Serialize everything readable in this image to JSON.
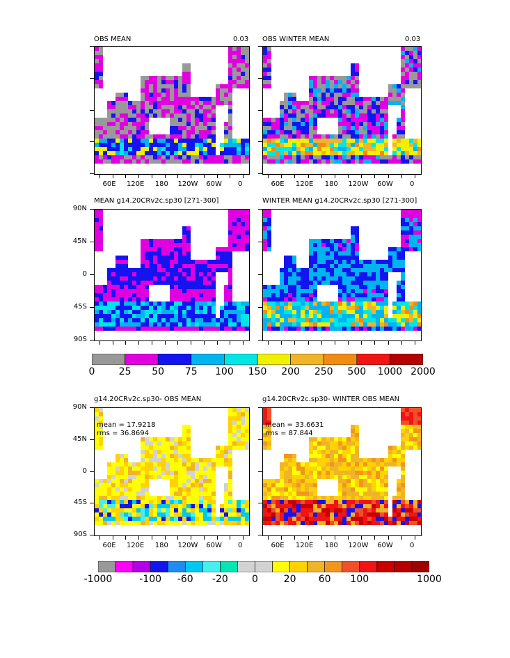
{
  "panels": [
    {
      "id": "obs-mean",
      "title": "OBS MEAN",
      "value": "0.03",
      "stats": null,
      "yticks_labeled": false
    },
    {
      "id": "obs-winter-mean",
      "title": "OBS WINTER MEAN",
      "value": "0.03",
      "stats": null,
      "yticks_labeled": false
    },
    {
      "id": "model-mean",
      "title": "MEAN g14.20CRv2c.sp30  [271-300]",
      "value": "",
      "stats": null,
      "yticks_labeled": true
    },
    {
      "id": "model-winter-mean",
      "title": "WINTER MEAN g14.20CRv2c.sp30  [271-300]",
      "value": "",
      "stats": null,
      "yticks_labeled": false
    },
    {
      "id": "diff-mean",
      "title": "g14.20CRv2c.sp30- OBS MEAN",
      "value": "",
      "stats": {
        "mean": "mean = 17.9218",
        "rms": "rms = 36.8694"
      },
      "yticks_labeled": true
    },
    {
      "id": "diff-winter-mean",
      "title": "g14.20CRv2c.sp30- WINTER OBS MEAN",
      "value": "",
      "stats": {
        "mean": "mean = 33.6631",
        "rms": "rms = 87.844"
      },
      "yticks_labeled": false
    }
  ],
  "axes": {
    "ylabels": [
      "90N",
      "45N",
      "0",
      "45S",
      "90S"
    ],
    "xlabels": [
      "60E",
      "120E",
      "180",
      "120W",
      "60W",
      "0"
    ]
  },
  "colorbar_top": {
    "labels": [
      "0",
      "25",
      "50",
      "75",
      "100",
      "150",
      "200",
      "250",
      "500",
      "1000",
      "2000"
    ],
    "colors": [
      "#999999",
      "#e000e0",
      "#1414f0",
      "#00b4f0",
      "#00e6e6",
      "#f0f000",
      "#f0b428",
      "#f08c14",
      "#f01414",
      "#b40000"
    ]
  },
  "colorbar_bottom": {
    "labels": [
      "-1000",
      "-100",
      "-60",
      "-20",
      "0",
      "20",
      "60",
      "100",
      "1000"
    ],
    "colors": [
      "#999999",
      "#ff00ff",
      "#b400e6",
      "#1414f0",
      "#1e8cf0",
      "#00c8f0",
      "#46f0f0",
      "#00e6b4",
      "#d2d2d2",
      "#d2d2d2",
      "#ffff00",
      "#ffd200",
      "#f0b428",
      "#f0961e",
      "#f05028",
      "#f01414",
      "#c80000",
      "#b40000",
      "#a00000"
    ]
  },
  "chart_data": [
    {
      "type": "heatmap",
      "title": "OBS MEAN",
      "annotation": "0.03",
      "x_ticks": [
        "60E",
        "120E",
        "180",
        "120W",
        "60W",
        "0"
      ],
      "y_ticks": [],
      "legend": "top colorbar, values 0–2000",
      "dominant_range": "25–75 (magenta/blue), higher (blue/cyan/yellow) in Southern Ocean band near 45S–60S"
    },
    {
      "type": "heatmap",
      "title": "OBS WINTER MEAN",
      "annotation": "0.03",
      "x_ticks": [
        "60E",
        "120E",
        "180",
        "120W",
        "60W",
        "0"
      ],
      "y_ticks": [],
      "legend": "top colorbar",
      "dominant_range": "50–150 widespread, 150–250 in Southern Ocean and North Atlantic"
    },
    {
      "type": "heatmap",
      "title": "MEAN g14.20CRv2c.sp30  [271-300]",
      "x_ticks": [],
      "y_ticks": [
        "90N",
        "45N",
        "0",
        "45S",
        "90S"
      ],
      "legend": "top colorbar",
      "dominant_range": "25–75 in tropics, 75–150 in Southern Ocean, up to 1000 near Antarctic Weddell region"
    },
    {
      "type": "heatmap",
      "title": "WINTER MEAN g14.20CRv2c.sp30  [271-300]",
      "x_ticks": [],
      "y_ticks": [],
      "legend": "top colorbar",
      "dominant_range": "75–150 widespread, 150–500 in Southern Ocean and North Atlantic"
    },
    {
      "type": "heatmap",
      "title": "g14.20CRv2c.sp30- OBS MEAN",
      "stats": {
        "mean": 17.9218,
        "rms": 36.8694
      },
      "x_ticks": [
        "60E",
        "120E",
        "180",
        "120W",
        "60W",
        "0"
      ],
      "y_ticks": [
        "90N",
        "45N",
        "0",
        "45S",
        "90S"
      ],
      "legend": "bottom colorbar, values -1000 to 1000",
      "dominant_range": "0–60 widespread (yellow), negative (cyan/blue) spots near 50S"
    },
    {
      "type": "heatmap",
      "title": "g14.20CRv2c.sp30- WINTER OBS MEAN",
      "stats": {
        "mean": 33.6631,
        "rms": 87.844
      },
      "x_ticks": [
        "60E",
        "120E",
        "180",
        "120W",
        "60W",
        "0"
      ],
      "y_ticks": [],
      "legend": "bottom colorbar",
      "dominant_range": "20–100 widespread, >100 (red) in Southern Ocean and North Atlantic"
    }
  ]
}
